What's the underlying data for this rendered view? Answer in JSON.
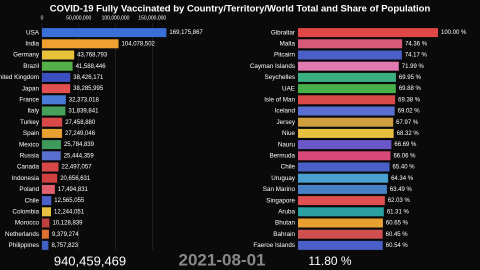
{
  "title": "COVID-19 Fully Vaccinated by Country/Territory/World Total and Share of Population",
  "footer": {
    "total": "940,459,469",
    "date": "2021-08-01",
    "share": "11.80 %"
  },
  "chart_data": [
    {
      "type": "bar",
      "orientation": "horizontal",
      "categories": [
        "USA",
        "India",
        "Germany",
        "Brazil",
        "United Kingdom",
        "Japan",
        "France",
        "Italy",
        "Turkey",
        "Spain",
        "Mexico",
        "Russia",
        "Canada",
        "Indonesia",
        "Poland",
        "Chile",
        "Colombia",
        "Morocco",
        "Netherlands",
        "Philippines"
      ],
      "values": [
        169175867,
        104078502,
        43768793,
        41588446,
        38426171,
        38285995,
        32373018,
        31839841,
        27458880,
        27249046,
        25784839,
        25444359,
        22497057,
        20656631,
        17494831,
        12565055,
        12244051,
        10128839,
        9379274,
        8757823
      ],
      "value_labels": [
        "169,175,867",
        "104,078,502",
        "43,768,793",
        "41,588,446",
        "38,426,171",
        "38,285,995",
        "32,373,018",
        "31,839,841",
        "27,458,880",
        "27,249,046",
        "25,784,839",
        "25,444,359",
        "22,497,057",
        "20,656,631",
        "17,494,831",
        "12,565,055",
        "12,244,051",
        "10,128,839",
        "9,379,274",
        "8,757,823"
      ],
      "colors": [
        "#3b6fd8",
        "#f0a030",
        "#e8c23a",
        "#56b04a",
        "#3a4fc0",
        "#e25050",
        "#4a7ad8",
        "#46a05a",
        "#d84a4a",
        "#e8a030",
        "#3e9a5a",
        "#5a70d0",
        "#d84848",
        "#d04040",
        "#e06070",
        "#4a60c8",
        "#e8c040",
        "#c04040",
        "#e07030",
        "#4060c8"
      ],
      "xlim": [
        0,
        170000000
      ],
      "xticks": [
        0,
        {
          "value": 50000000,
          "label": "50,000,000"
        },
        {
          "value": 100000000,
          "label": "100,000,000"
        },
        {
          "value": 150000000,
          "label": "150,000,000"
        }
      ]
    },
    {
      "type": "bar",
      "orientation": "horizontal",
      "categories": [
        "Gibraltar",
        "Malta",
        "Pitcairn",
        "Cayman Islands",
        "Seychelles",
        "UAE",
        "Isle of Man",
        "Iceland",
        "Jersey",
        "Niue",
        "Nauru",
        "Bermuda",
        "Chile",
        "Uruguay",
        "San Marino",
        "Singapore",
        "Aruba",
        "Bhutan",
        "Bahrain",
        "Faeroe Islands"
      ],
      "values": [
        100.0,
        74.36,
        74.17,
        71.99,
        69.95,
        69.88,
        69.38,
        69.02,
        67.97,
        68.32,
        66.69,
        66.06,
        65.4,
        64.34,
        63.49,
        62.03,
        61.31,
        60.65,
        60.45,
        60.54
      ],
      "value_labels": [
        "100.00 %",
        "74.36 %",
        "74.17 %",
        "71.99 %",
        "69.95 %",
        "69.88 %",
        "69.38 %",
        "69.02 %",
        "67.97 %",
        "68.32 %",
        "66.69 %",
        "66.06 %",
        "65.40 %",
        "64.34 %",
        "63.49 %",
        "62.03 %",
        "61.31 %",
        "60.65 %",
        "60.45 %",
        "60.54 %"
      ],
      "colors": [
        "#e04848",
        "#d85a7a",
        "#4a60c8",
        "#e07ab0",
        "#3ab080",
        "#48b048",
        "#d84848",
        "#5a70d0",
        "#d0a040",
        "#e8c040",
        "#6a58c8",
        "#d84878",
        "#4a60c8",
        "#4aa0d0",
        "#4a80c8",
        "#e05050",
        "#2aa0a0",
        "#e8a030",
        "#d05050",
        "#4a60c8"
      ],
      "xlim": [
        0,
        100
      ]
    }
  ]
}
